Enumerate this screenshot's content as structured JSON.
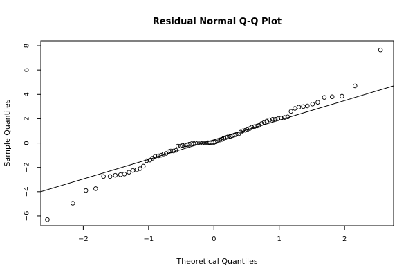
{
  "chart_data": {
    "type": "scatter",
    "title": "Residual Normal Q-Q Plot",
    "xlabel": "Theoretical Quantiles",
    "ylabel": "Sample Quantiles",
    "xlim": [
      -2.65,
      2.75
    ],
    "ylim": [
      -6.8,
      8.4
    ],
    "xticks": [
      -2,
      -1,
      0,
      1,
      2
    ],
    "yticks": [
      -6,
      -4,
      -2,
      0,
      2,
      4,
      6,
      8
    ],
    "grid": false,
    "legend": "none",
    "marker": "open-circle",
    "colors": {
      "points": "#000000",
      "line": "#000000",
      "frame": "#000000"
    },
    "reference_line": {
      "points": [
        [
          -2.65,
          -4.0
        ],
        [
          2.75,
          4.7
        ]
      ]
    },
    "points": [
      [
        -2.55,
        -6.3
      ],
      [
        -2.16,
        -4.95
      ],
      [
        -1.96,
        -3.9
      ],
      [
        -1.81,
        -3.75
      ],
      [
        -1.69,
        -2.75
      ],
      [
        -1.59,
        -2.75
      ],
      [
        -1.51,
        -2.65
      ],
      [
        -1.43,
        -2.6
      ],
      [
        -1.37,
        -2.55
      ],
      [
        -1.3,
        -2.4
      ],
      [
        -1.24,
        -2.25
      ],
      [
        -1.18,
        -2.2
      ],
      [
        -1.13,
        -2.1
      ],
      [
        -1.08,
        -1.9
      ],
      [
        -1.03,
        -1.45
      ],
      [
        -0.98,
        -1.4
      ],
      [
        -0.94,
        -1.25
      ],
      [
        -0.9,
        -1.1
      ],
      [
        -0.85,
        -1.05
      ],
      [
        -0.81,
        -1.0
      ],
      [
        -0.77,
        -0.9
      ],
      [
        -0.73,
        -0.85
      ],
      [
        -0.69,
        -0.7
      ],
      [
        -0.66,
        -0.65
      ],
      [
        -0.62,
        -0.65
      ],
      [
        -0.58,
        -0.6
      ],
      [
        -0.55,
        -0.25
      ],
      [
        -0.51,
        -0.25
      ],
      [
        -0.48,
        -0.2
      ],
      [
        -0.44,
        -0.15
      ],
      [
        -0.41,
        -0.15
      ],
      [
        -0.38,
        -0.1
      ],
      [
        -0.34,
        -0.05
      ],
      [
        -0.31,
        -0.05
      ],
      [
        -0.28,
        0.0
      ],
      [
        -0.25,
        0.0
      ],
      [
        -0.21,
        0.0
      ],
      [
        -0.18,
        0.0
      ],
      [
        -0.15,
        0.02
      ],
      [
        -0.12,
        0.02
      ],
      [
        -0.09,
        0.03
      ],
      [
        -0.06,
        0.03
      ],
      [
        -0.03,
        0.05
      ],
      [
        0.0,
        0.05
      ],
      [
        0.03,
        0.1
      ],
      [
        0.06,
        0.2
      ],
      [
        0.09,
        0.25
      ],
      [
        0.12,
        0.3
      ],
      [
        0.15,
        0.4
      ],
      [
        0.18,
        0.45
      ],
      [
        0.21,
        0.5
      ],
      [
        0.25,
        0.55
      ],
      [
        0.28,
        0.6
      ],
      [
        0.31,
        0.65
      ],
      [
        0.34,
        0.7
      ],
      [
        0.38,
        0.75
      ],
      [
        0.41,
        0.9
      ],
      [
        0.44,
        1.0
      ],
      [
        0.48,
        1.05
      ],
      [
        0.51,
        1.1
      ],
      [
        0.55,
        1.2
      ],
      [
        0.58,
        1.3
      ],
      [
        0.62,
        1.35
      ],
      [
        0.66,
        1.4
      ],
      [
        0.69,
        1.45
      ],
      [
        0.73,
        1.6
      ],
      [
        0.77,
        1.7
      ],
      [
        0.81,
        1.8
      ],
      [
        0.85,
        1.9
      ],
      [
        0.9,
        1.95
      ],
      [
        0.94,
        1.95
      ],
      [
        0.98,
        2.0
      ],
      [
        1.03,
        2.05
      ],
      [
        1.08,
        2.1
      ],
      [
        1.13,
        2.15
      ],
      [
        1.18,
        2.6
      ],
      [
        1.24,
        2.85
      ],
      [
        1.3,
        2.95
      ],
      [
        1.37,
        3.0
      ],
      [
        1.43,
        3.05
      ],
      [
        1.51,
        3.2
      ],
      [
        1.59,
        3.35
      ],
      [
        1.69,
        3.75
      ],
      [
        1.81,
        3.8
      ],
      [
        1.96,
        3.85
      ],
      [
        2.16,
        4.7
      ],
      [
        2.55,
        7.65
      ]
    ]
  }
}
